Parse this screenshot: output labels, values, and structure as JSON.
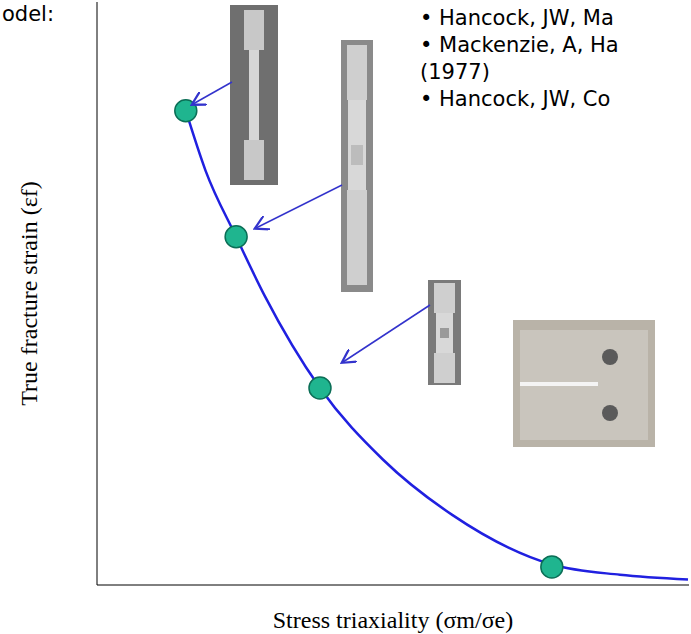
{
  "chart_data": {
    "type": "line",
    "x_label": "Stress triaxiality (σm/σe)",
    "y_label": "True fracture strain (εf)",
    "xlim": [
      0,
      6
    ],
    "ylim": [
      -0.7,
      6.7
    ],
    "xticks": [
      0.5,
      1,
      1.5,
      2,
      2.5,
      3,
      3.5,
      4,
      4.5,
      5,
      5.5
    ],
    "yticks": [
      0,
      1,
      2,
      3,
      4,
      5,
      6
    ],
    "tick_labels": false,
    "grid": false,
    "annotations": [
      "odel:",
      "• Hancock, JW, Ma",
      "• Mackenzie, A, Ha",
      "(1977)",
      "• Hancock, JW, Co"
    ],
    "series": [
      {
        "type": "line",
        "color": "#2020e0",
        "line_style": "solid",
        "x": [
          0.9,
          1.1,
          1.41,
          1.7,
          2.26,
          2.9,
          3.6,
          4.61,
          5.3,
          5.99
        ],
        "values": [
          5.32,
          4.56,
          3.72,
          2.97,
          1.8,
          0.89,
          0.19,
          -0.44,
          -0.57,
          -0.63
        ]
      },
      {
        "type": "scatter",
        "color": "#1fb58f",
        "marker": "circle",
        "x": [
          0.9,
          1.41,
          2.26,
          4.61
        ],
        "values": [
          5.32,
          3.72,
          1.8,
          -0.47
        ]
      }
    ]
  }
}
